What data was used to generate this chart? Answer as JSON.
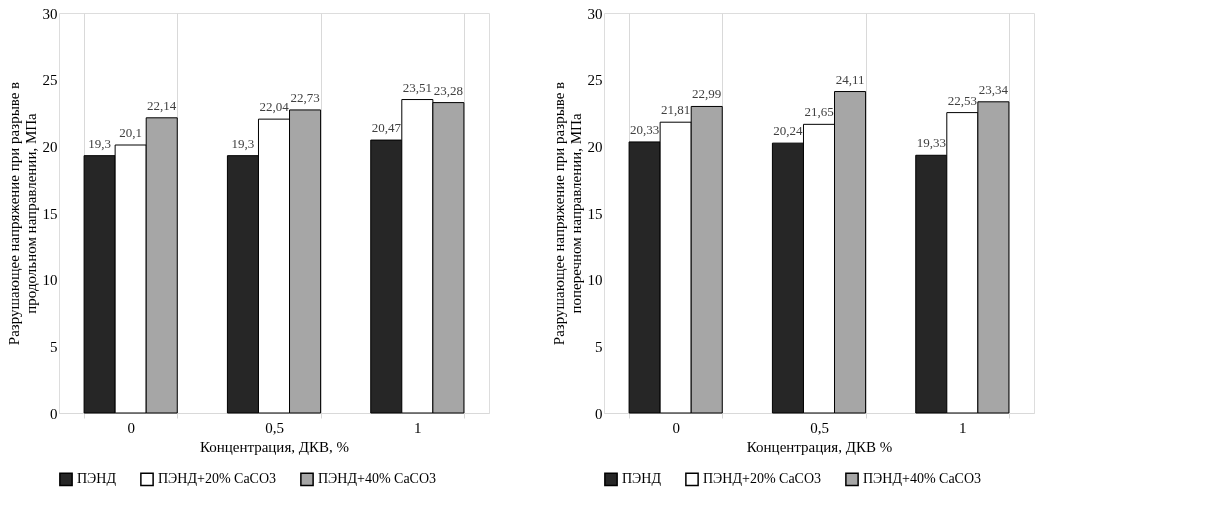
{
  "chart_data": [
    {
      "type": "bar",
      "categories": [
        "0",
        "0,5",
        "1"
      ],
      "xlabel": "Концентрация, ДКВ, %",
      "ylabel": "Разрушающее напряжение при разрыве в\nпродольном направлении, МПа",
      "ylim": [
        0,
        30
      ],
      "yticks": [
        0,
        5,
        10,
        15,
        20,
        25,
        30
      ],
      "grid": "x",
      "legend": "bottom",
      "series": [
        {
          "name": "ПЭНД",
          "color": "#262626",
          "values": [
            19.3,
            19.3,
            20.47
          ],
          "value_labels": [
            "19,3",
            "19,3",
            "20,47"
          ]
        },
        {
          "name": "ПЭНД+20% CaCO3",
          "color": "#ffffff",
          "values": [
            20.1,
            22.04,
            23.51
          ],
          "value_labels": [
            "20,1",
            "22,04",
            "23,51"
          ]
        },
        {
          "name": "ПЭНД+40% CaCO3",
          "color": "#a6a6a6",
          "values": [
            22.14,
            22.73,
            23.28
          ],
          "value_labels": [
            "22,14",
            "22,73",
            "23,28"
          ]
        }
      ]
    },
    {
      "type": "bar",
      "categories": [
        "0",
        "0,5",
        "1"
      ],
      "xlabel": "Концентрация, ДКВ %",
      "ylabel": "Разрушающее напряжение при разрыве в\nпоперечном направлении, МПа",
      "ylim": [
        0,
        30
      ],
      "yticks": [
        0,
        5,
        10,
        15,
        20,
        25,
        30
      ],
      "grid": "x",
      "legend": "bottom",
      "series": [
        {
          "name": "ПЭНД",
          "color": "#262626",
          "values": [
            20.33,
            20.24,
            19.33
          ],
          "value_labels": [
            "20,33",
            "20,24",
            "19,33"
          ]
        },
        {
          "name": "ПЭНД+20% CaCO3",
          "color": "#ffffff",
          "values": [
            21.81,
            21.65,
            22.53
          ],
          "value_labels": [
            "21,81",
            "21,65",
            "22,53"
          ]
        },
        {
          "name": "ПЭНД+40% CaCO3",
          "color": "#a6a6a6",
          "values": [
            22.99,
            24.11,
            23.34
          ],
          "value_labels": [
            "22,99",
            "24,11",
            "23,34"
          ]
        }
      ]
    }
  ]
}
